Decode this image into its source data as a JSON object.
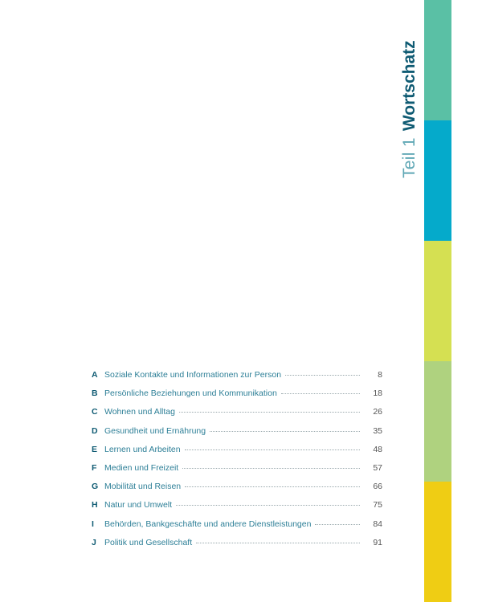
{
  "section": {
    "part_label": "Teil 1",
    "title": "Wortschatz"
  },
  "stripe_colors": [
    "#5ac0a5",
    "#05aacb",
    "#d5e052",
    "#afd27f",
    "#efcd14"
  ],
  "toc": [
    {
      "letter": "A",
      "title": "Soziale Kontakte und Informationen zur Person",
      "page": "8"
    },
    {
      "letter": "B",
      "title": "Persönliche Beziehungen und Kommunikation",
      "page": "18"
    },
    {
      "letter": "C",
      "title": "Wohnen und Alltag",
      "page": "26"
    },
    {
      "letter": "D",
      "title": "Gesundheit und Ernährung",
      "page": "35"
    },
    {
      "letter": "E",
      "title": "Lernen und Arbeiten",
      "page": "48"
    },
    {
      "letter": "F",
      "title": "Medien und Freizeit",
      "page": "57"
    },
    {
      "letter": "G",
      "title": "Mobilität und Reisen",
      "page": "66"
    },
    {
      "letter": "H",
      "title": "Natur und Umwelt",
      "page": "75"
    },
    {
      "letter": "I",
      "title": "Behörden, Bankgeschäfte und andere Dienstleistungen",
      "page": "84"
    },
    {
      "letter": "J",
      "title": "Politik und Gesellschaft",
      "page": "91"
    }
  ]
}
